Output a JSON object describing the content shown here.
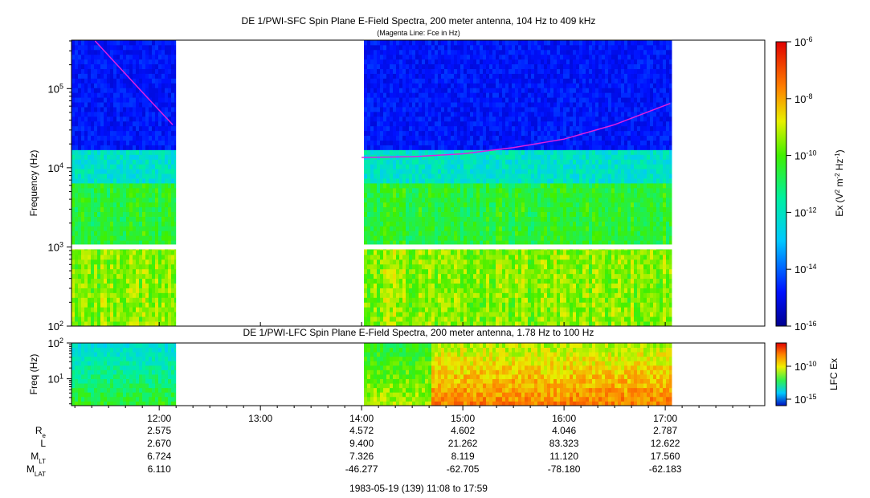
{
  "chart_data": [
    {
      "type": "heatmap",
      "title": "DE 1/PWI-SFC  Spin Plane E-Field Spectra, 200 meter antenna, 104 Hz to 409 kHz",
      "subtitle": "(Magenta Line: Fce in Hz)",
      "ylabel": "Frequency (Hz)",
      "y_scale": "log",
      "ylim": [
        100,
        409000
      ],
      "y_ticks": [
        "10^2",
        "10^3",
        "10^4",
        "10^5"
      ],
      "x_ticks": [
        "12:00",
        "13:00",
        "14:00",
        "15:00",
        "16:00",
        "17:00"
      ],
      "xlim": [
        "11:08",
        "17:59"
      ],
      "data_gaps": [
        [
          "12:10",
          "14:00"
        ],
        [
          "17:04",
          "17:59"
        ]
      ],
      "colorbar": {
        "label": "Ex (V^2 m^-2 Hz^-1)",
        "scale": "log",
        "range": [
          1e-16,
          1e-06
        ],
        "ticks": [
          "10^-6",
          "10^-8",
          "10^-10",
          "10^-12",
          "10^-14",
          "10^-16"
        ]
      },
      "overlay": {
        "color": "#e020e0",
        "segments": [
          {
            "x": [
              "11:22",
              "11:35",
              "11:50",
              "12:08"
            ],
            "y": [
              400000,
              200000,
              90000,
              35000
            ]
          },
          {
            "x": [
              "14:00",
              "14:30",
              "15:00",
              "15:30",
              "16:00",
              "16:30",
              "17:03"
            ],
            "y": [
              13500,
              13800,
              15000,
              18000,
              23000,
              35000,
              65000
            ]
          }
        ]
      }
    },
    {
      "type": "heatmap",
      "title": "DE 1/PWI-LFC  Spin Plane E-Field Spectra, 200 meter antenna, 1.78 Hz to 100 Hz",
      "ylabel": "Freq (Hz)",
      "y_scale": "log",
      "ylim": [
        1.78,
        100
      ],
      "y_ticks": [
        "10^1",
        "10^2"
      ],
      "data_gaps": [
        [
          "12:10",
          "14:00"
        ],
        [
          "17:04",
          "17:59"
        ]
      ],
      "colorbar": {
        "label": "LFC Ex",
        "scale": "log",
        "ticks": [
          "10^-10",
          "10^-15"
        ]
      }
    }
  ],
  "ephemeris": {
    "row_labels": [
      {
        "main": "R",
        "sub": "e"
      },
      {
        "main": "L",
        "sub": ""
      },
      {
        "main": "M",
        "sub": "LT"
      },
      {
        "main": "M",
        "sub": "LAT"
      }
    ],
    "columns": [
      {
        "time": "12:00",
        "values": [
          "2.575",
          "2.670",
          "6.724",
          "6.110"
        ]
      },
      {
        "time": "13:00",
        "values": [
          "",
          "",
          "",
          ""
        ]
      },
      {
        "time": "14:00",
        "values": [
          "4.572",
          "9.400",
          "7.326",
          "-46.277"
        ]
      },
      {
        "time": "15:00",
        "values": [
          "4.602",
          "21.262",
          "8.119",
          "-62.705"
        ]
      },
      {
        "time": "16:00",
        "values": [
          "4.046",
          "83.323",
          "11.120",
          "-78.180"
        ]
      },
      {
        "time": "17:00",
        "values": [
          "2.787",
          "12.622",
          "17.560",
          "-62.183"
        ]
      }
    ]
  },
  "footer": "1983-05-19 (139) 11:08 to 17:59"
}
